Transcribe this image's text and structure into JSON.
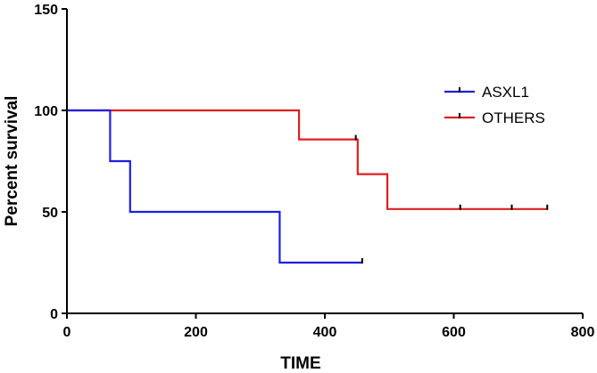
{
  "chart_data": {
    "type": "line",
    "step": true,
    "title": "",
    "xlabel": "TIME",
    "ylabel": "Percent survival",
    "xlim": [
      0,
      800
    ],
    "ylim": [
      0,
      150
    ],
    "xticks": [
      0,
      200,
      400,
      600,
      800
    ],
    "yticks": [
      0,
      50,
      100,
      150
    ],
    "grid": false,
    "legend_position": "top-right",
    "series": [
      {
        "name": "ASXL1",
        "color": "#1f1fe0",
        "steps": [
          [
            0,
            100
          ],
          [
            67,
            75
          ],
          [
            98,
            50
          ],
          [
            330,
            25
          ],
          [
            458,
            25
          ]
        ],
        "censored": [
          [
            458,
            25
          ]
        ]
      },
      {
        "name": "OTHERS",
        "color": "#e01f1f",
        "steps": [
          [
            0,
            100
          ],
          [
            360,
            85.7
          ],
          [
            451,
            68.6
          ],
          [
            497,
            51.4
          ],
          [
            745,
            51.4
          ]
        ],
        "censored": [
          [
            448,
            85.7
          ],
          [
            610,
            51.4
          ],
          [
            690,
            51.4
          ],
          [
            745,
            51.4
          ]
        ]
      }
    ]
  }
}
